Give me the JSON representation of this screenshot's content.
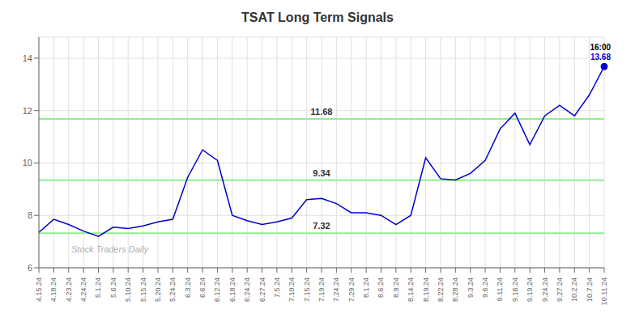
{
  "chart_data": {
    "type": "line",
    "title": "TSAT Long Term Signals",
    "categories": [
      "4.15.24",
      "4.18.24",
      "4.23.24",
      "4.24.24",
      "5.1.24",
      "5.6.24",
      "5.10.24",
      "5.15.24",
      "5.20.24",
      "5.24.24",
      "6.3.24",
      "6.6.24",
      "6.12.24",
      "6.18.24",
      "6.24.24",
      "6.27.24",
      "7.5.24",
      "7.10.24",
      "7.15.24",
      "7.19.24",
      "7.24.24",
      "7.29.24",
      "8.1.24",
      "8.6.24",
      "8.9.24",
      "8.14.24",
      "8.19.24",
      "8.22.24",
      "8.28.24",
      "9.3.24",
      "9.6.24",
      "9.11.24",
      "9.16.24",
      "9.19.24",
      "9.24.24",
      "9.27.24",
      "10.2.24",
      "10.7.24",
      "10.11.24"
    ],
    "values": [
      7.35,
      7.85,
      7.65,
      7.4,
      7.2,
      7.55,
      7.5,
      7.6,
      7.75,
      7.85,
      9.45,
      10.5,
      10.1,
      8.0,
      7.8,
      7.65,
      7.75,
      7.9,
      8.6,
      8.65,
      8.45,
      8.1,
      8.1,
      8.0,
      7.65,
      8.0,
      10.2,
      9.4,
      9.35,
      9.6,
      10.1,
      11.3,
      11.9,
      10.7,
      11.8,
      12.2,
      11.8,
      12.6,
      13.68
    ],
    "color": "#0000cc",
    "ylim": [
      6.0,
      14.8
    ],
    "yticks": [
      6,
      8,
      10,
      12,
      14
    ],
    "grid": true,
    "hlines": [
      {
        "value": 7.32,
        "label": "7.32",
        "color": "#90EE90"
      },
      {
        "value": 9.34,
        "label": "9.34",
        "color": "#90EE90"
      },
      {
        "value": 11.68,
        "label": "11.68",
        "color": "#90EE90"
      }
    ],
    "annotations": [
      {
        "text": "16:00",
        "x": "10.11.24",
        "y": 13.68,
        "color": "black"
      },
      {
        "text": "13.68",
        "x": "10.11.24",
        "y": 13.68,
        "color": "#0000dd"
      }
    ],
    "watermark": {
      "text": "Stock Traders Daily",
      "color": "#b0b0b0"
    }
  }
}
